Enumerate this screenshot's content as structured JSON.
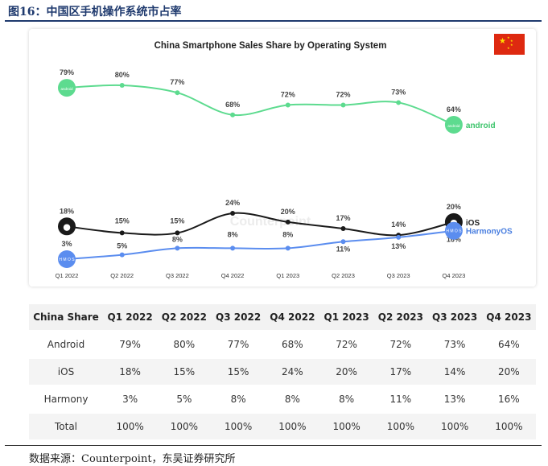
{
  "figure_title": "图16：中国区手机操作系统市占率",
  "source_text": "数据来源：Counterpoint，东吴证券研究所",
  "watermark_text": "Counterpoint",
  "colors": {
    "android": "#5ddb8f",
    "ios": "#1a1a1a",
    "harmony": "#5b8def",
    "android_label": "#3cc46b",
    "harmony_label": "#4a7fe0",
    "flag_red": "#de2910",
    "flag_star": "#ffde00"
  },
  "chart_data": {
    "type": "line",
    "title": "China Smartphone Sales Share by Operating System",
    "categories": [
      "Q1 2022",
      "Q2 2022",
      "Q3 2022",
      "Q4 2022",
      "Q1 2023",
      "Q2 2023",
      "Q3 2023",
      "Q4 2023"
    ],
    "ylim": [
      0,
      100
    ],
    "grid": false,
    "unit": "%",
    "series": [
      {
        "name": "android",
        "values": [
          79,
          80,
          77,
          68,
          72,
          72,
          73,
          64
        ]
      },
      {
        "name": "iOS",
        "values": [
          18,
          15,
          15,
          24,
          20,
          17,
          14,
          20
        ]
      },
      {
        "name": "HarmonyOS",
        "values": [
          3,
          5,
          8,
          8,
          8,
          11,
          13,
          16
        ]
      }
    ],
    "labels": {
      "android": [
        "79%",
        "80%",
        "77%",
        "68%",
        "72%",
        "72%",
        "73%",
        "64%"
      ],
      "ios": [
        "18%",
        "15%",
        "15%",
        "24%",
        "20%",
        "17%",
        "14%",
        "20%"
      ],
      "harmony": [
        "3%",
        "5%",
        "8%",
        "8%",
        "8%",
        "11%",
        "13%",
        "16%"
      ]
    },
    "badges": {
      "android": "android",
      "harmony": "H M O S"
    }
  },
  "table": {
    "header": [
      "China Share",
      "Q1 2022",
      "Q2 2022",
      "Q3 2022",
      "Q4 2022",
      "Q1 2023",
      "Q2 2023",
      "Q3 2023",
      "Q4 2023"
    ],
    "rows": [
      [
        "Android",
        "79%",
        "80%",
        "77%",
        "68%",
        "72%",
        "72%",
        "73%",
        "64%"
      ],
      [
        "iOS",
        "18%",
        "15%",
        "15%",
        "24%",
        "20%",
        "17%",
        "14%",
        "20%"
      ],
      [
        "Harmony",
        "3%",
        "5%",
        "8%",
        "8%",
        "8%",
        "11%",
        "13%",
        "16%"
      ],
      [
        "Total",
        "100%",
        "100%",
        "100%",
        "100%",
        "100%",
        "100%",
        "100%",
        "100%"
      ]
    ]
  }
}
